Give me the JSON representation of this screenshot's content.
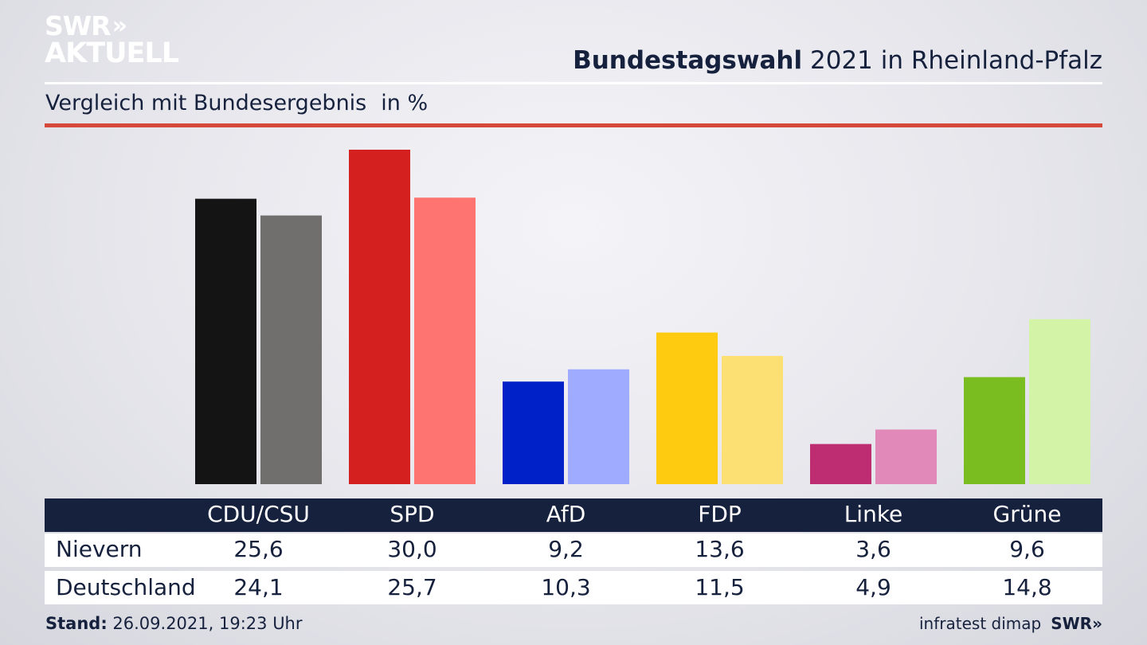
{
  "logo": {
    "line1": "SWR",
    "chevrons": "»",
    "line2": "AKTUELL"
  },
  "header": {
    "title_bold": "Bundestagswahl",
    "title_rest": "2021 in Rheinland-Pfalz",
    "subtitle": "Vergleich mit Bundesergebnis",
    "unit": "in %"
  },
  "table": {
    "row_labels": [
      "Nievern",
      "Deutschland"
    ]
  },
  "footer": {
    "stand_label": "Stand:",
    "stand_value": "26.09.2021, 19:23 Uhr",
    "source": "infratest dimap",
    "brand": "SWR»"
  },
  "chart_data": {
    "type": "bar",
    "categories": [
      "CDU/CSU",
      "SPD",
      "AfD",
      "FDP",
      "Linke",
      "Grüne"
    ],
    "series": [
      {
        "name": "Nievern",
        "values": [
          25.6,
          30.0,
          9.2,
          13.6,
          3.6,
          9.6
        ],
        "labels": [
          "25,6",
          "30,0",
          "9,2",
          "13,6",
          "3,6",
          "9,6"
        ],
        "colors": [
          "#141414",
          "#d52020",
          "#0021c8",
          "#ffcb10",
          "#be2d72",
          "#7abd20"
        ]
      },
      {
        "name": "Deutschland",
        "values": [
          24.1,
          25.7,
          10.3,
          11.5,
          4.9,
          14.8
        ],
        "labels": [
          "24,1",
          "25,7",
          "10,3",
          "11,5",
          "4,9",
          "14,8"
        ],
        "colors": [
          "#706f6d",
          "#fe7470",
          "#9fabfe",
          "#fde074",
          "#e18ab9",
          "#d3f4a6"
        ]
      }
    ],
    "ylim": [
      0,
      30.0
    ],
    "grid": false,
    "legend": "none"
  },
  "colors": {
    "navy": "#16213d",
    "accent_red": "#d5483a",
    "white": "#ffffff"
  }
}
